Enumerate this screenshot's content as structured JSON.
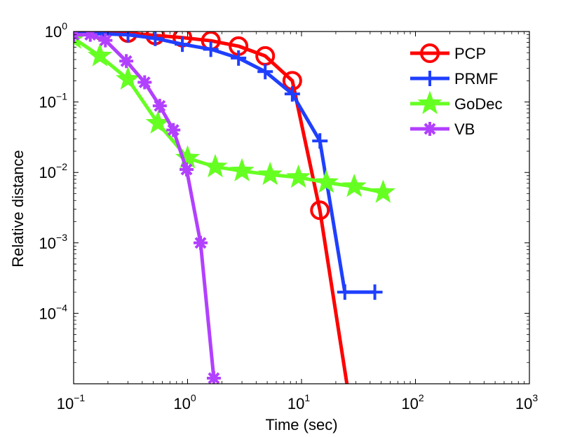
{
  "chart_data": {
    "type": "line",
    "xlabel": "Time (sec)",
    "ylabel": "Relative distance",
    "xscale": "log",
    "yscale": "log",
    "xlim": [
      0.1,
      1000
    ],
    "ylim": [
      1e-05,
      1
    ],
    "x_ticks": [
      {
        "base": "10",
        "exp": "−1"
      },
      {
        "base": "10",
        "exp": "0"
      },
      {
        "base": "10",
        "exp": "1"
      },
      {
        "base": "10",
        "exp": "2"
      },
      {
        "base": "10",
        "exp": "3"
      }
    ],
    "y_ticks": [
      {
        "base": "10",
        "exp": "0"
      },
      {
        "base": "10",
        "exp": "−1"
      },
      {
        "base": "10",
        "exp": "−2"
      },
      {
        "base": "10",
        "exp": "−3"
      },
      {
        "base": "10",
        "exp": "−4"
      }
    ],
    "legend_position": "top-right",
    "grid": false,
    "series": [
      {
        "name": "PCP",
        "color": "#ff0000",
        "marker": "circle",
        "x": [
          0.1,
          0.18,
          0.3,
          0.52,
          0.9,
          1.6,
          2.8,
          4.8,
          8.3,
          14.5,
          25
        ],
        "y": [
          1.0,
          1.0,
          0.95,
          0.88,
          0.82,
          0.74,
          0.62,
          0.45,
          0.2,
          0.0029,
          1e-05
        ],
        "marked": [
          true,
          true,
          true,
          true,
          true,
          true,
          true,
          true,
          true,
          true,
          false
        ]
      },
      {
        "name": "PRMF",
        "color": "#1f3fff",
        "marker": "plus",
        "x": [
          0.1,
          0.18,
          0.3,
          0.52,
          0.9,
          1.6,
          2.8,
          4.8,
          8.3,
          14.5,
          24,
          44
        ],
        "y": [
          0.93,
          0.93,
          0.9,
          0.8,
          0.66,
          0.56,
          0.42,
          0.27,
          0.13,
          0.028,
          0.0002,
          0.0002
        ],
        "marked": [
          true,
          true,
          true,
          true,
          true,
          true,
          true,
          true,
          true,
          true,
          true,
          true
        ]
      },
      {
        "name": "GoDec",
        "color": "#66ff22",
        "marker": "star",
        "x": [
          0.1,
          0.17,
          0.3,
          0.55,
          1.0,
          1.75,
          3.0,
          5.3,
          9.4,
          16.5,
          29,
          52
        ],
        "y": [
          0.8,
          0.45,
          0.21,
          0.05,
          0.016,
          0.012,
          0.0105,
          0.0093,
          0.0085,
          0.0072,
          0.0063,
          0.0052
        ],
        "marked": [
          true,
          true,
          true,
          true,
          true,
          true,
          true,
          true,
          true,
          true,
          true,
          true
        ]
      },
      {
        "name": "VB",
        "color": "#b240ff",
        "marker": "asterisk",
        "x": [
          0.1,
          0.14,
          0.19,
          0.29,
          0.42,
          0.57,
          0.75,
          0.98,
          1.3,
          1.7
        ],
        "y": [
          0.9,
          0.9,
          0.75,
          0.38,
          0.19,
          0.088,
          0.04,
          0.011,
          0.001,
          1.2e-05
        ],
        "marked": [
          true,
          true,
          true,
          true,
          true,
          true,
          true,
          true,
          true,
          true
        ]
      }
    ]
  }
}
